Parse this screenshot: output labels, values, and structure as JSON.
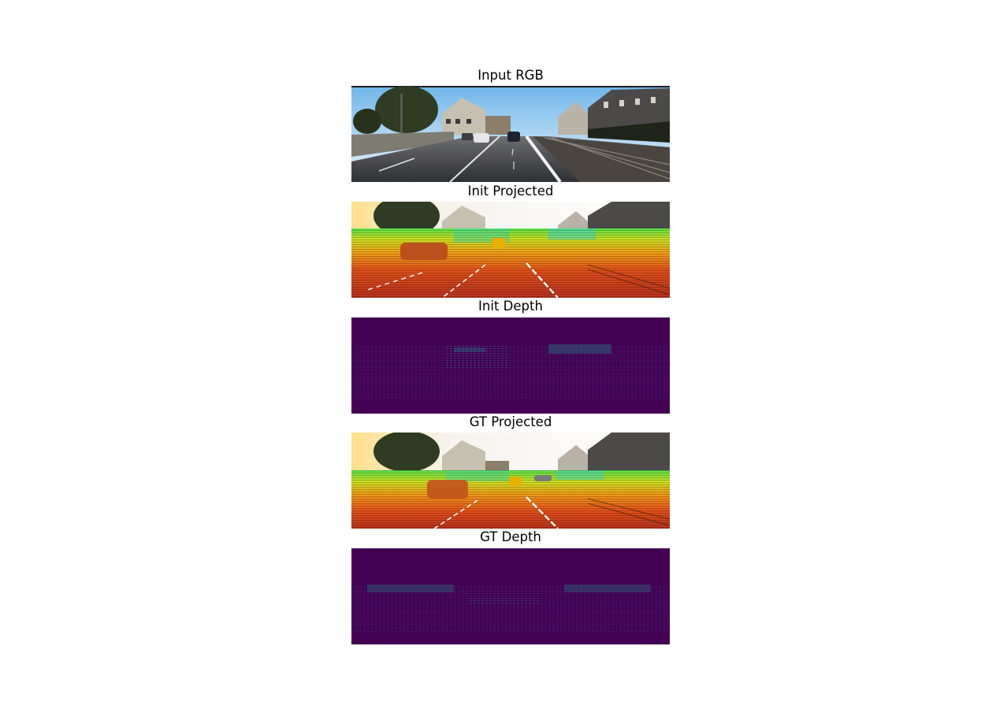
{
  "figure": {
    "panels": [
      {
        "title": "Input RGB",
        "kind": "rgb-photo"
      },
      {
        "title": "Init Projected",
        "kind": "lidar-overlay"
      },
      {
        "title": "Init Depth",
        "kind": "depth-map"
      },
      {
        "title": "GT Projected",
        "kind": "lidar-overlay"
      },
      {
        "title": "GT Depth",
        "kind": "depth-map"
      }
    ],
    "colors": {
      "depth_background": "#440154",
      "depth_points": "#3b528b",
      "depth_points_far": "#21918c"
    }
  }
}
